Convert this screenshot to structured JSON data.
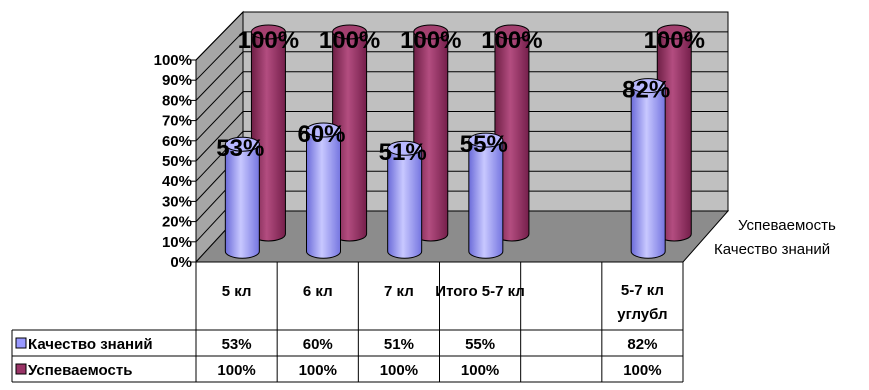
{
  "chart_data": {
    "type": "bar",
    "categories": [
      "5 кл",
      "6 кл",
      "7 кл",
      "Итого 5-7 кл",
      "",
      "5-7 кл углубл"
    ],
    "series": [
      {
        "name": "Качество знаний",
        "values": [
          53,
          60,
          51,
          55,
          null,
          82
        ],
        "labels": [
          "53%",
          "60%",
          "51%",
          "55%",
          "",
          "82%"
        ],
        "color": "#9999ff"
      },
      {
        "name": "Успеваемость",
        "values": [
          100,
          100,
          100,
          100,
          null,
          100
        ],
        "labels": [
          "100%",
          "100%",
          "100%",
          "100%",
          "",
          "100%"
        ],
        "color": "#993366"
      }
    ],
    "ylim": [
      0,
      100
    ],
    "yticks": [
      "0%",
      "10%",
      "20%",
      "30%",
      "40%",
      "50%",
      "60%",
      "70%",
      "80%",
      "90%",
      "100%"
    ],
    "grid": true,
    "data_table": true
  }
}
